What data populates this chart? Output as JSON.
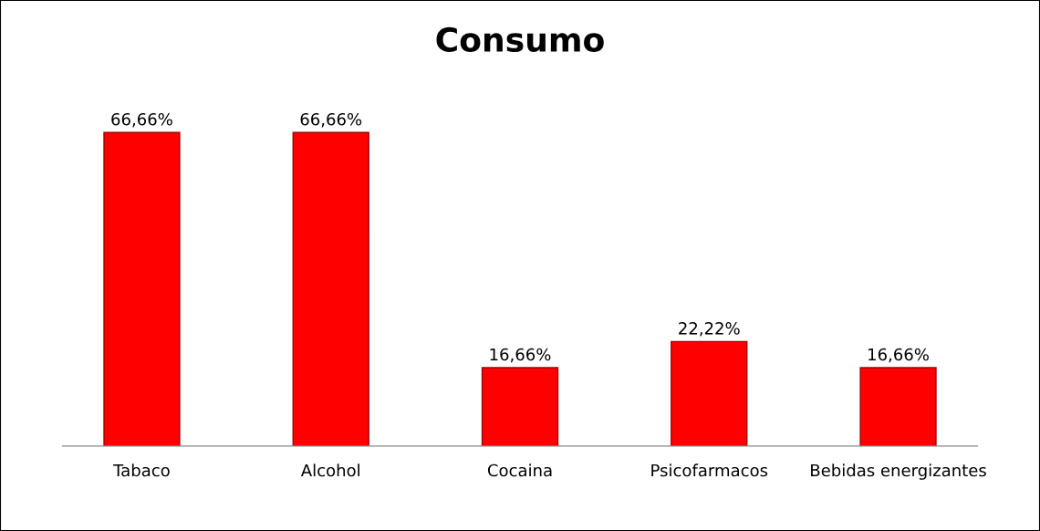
{
  "chart_data": {
    "type": "bar",
    "title": "Consumo",
    "categories": [
      "Tabaco",
      "Alcohol",
      "Cocaina",
      "Psicofarmacos",
      "Bebidas energizantes"
    ],
    "values": [
      66.66,
      66.66,
      16.66,
      22.22,
      16.66
    ],
    "value_labels": [
      "66,66%",
      "66,66%",
      "16,66%",
      "22,22%",
      "16,66%"
    ],
    "color": "#ff0000",
    "grid": false,
    "legend": false
  }
}
